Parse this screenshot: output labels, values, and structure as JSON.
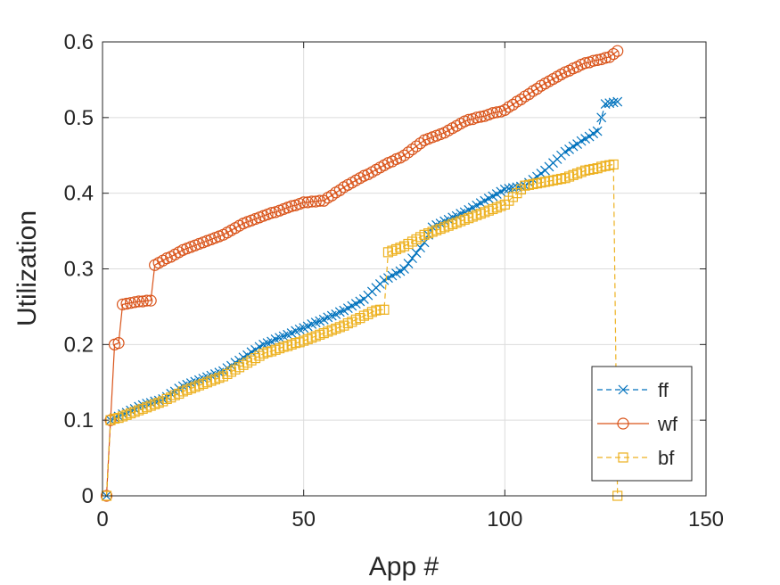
{
  "chart_data": {
    "type": "line",
    "title": "",
    "xlabel": "App #",
    "ylabel": "Utilization",
    "xlim": [
      0,
      150
    ],
    "ylim": [
      0,
      0.6
    ],
    "xticks": [
      0,
      50,
      100,
      150
    ],
    "yticks": [
      0,
      0.1,
      0.2,
      0.3,
      0.4,
      0.5,
      0.6
    ],
    "xtick_labels": [
      "0",
      "50",
      "100",
      "150"
    ],
    "ytick_labels": [
      "0",
      "0.1",
      "0.2",
      "0.3",
      "0.4",
      "0.5",
      "0.6"
    ],
    "grid": true,
    "legend_position": "bottom-right",
    "series": [
      {
        "name": "ff",
        "color": "#0072BD",
        "line_style": "dashed",
        "marker": "x",
        "anchors": [
          [
            1,
            0
          ],
          [
            2,
            0.1
          ],
          [
            5,
            0.108
          ],
          [
            10,
            0.12
          ],
          [
            15,
            0.128
          ],
          [
            20,
            0.145
          ],
          [
            30,
            0.165
          ],
          [
            40,
            0.2
          ],
          [
            50,
            0.222
          ],
          [
            60,
            0.245
          ],
          [
            65,
            0.26
          ],
          [
            70,
            0.285
          ],
          [
            75,
            0.3
          ],
          [
            80,
            0.335
          ],
          [
            82,
            0.355
          ],
          [
            90,
            0.375
          ],
          [
            100,
            0.405
          ],
          [
            105,
            0.41
          ],
          [
            110,
            0.43
          ],
          [
            115,
            0.455
          ],
          [
            123,
            0.482
          ],
          [
            125,
            0.518
          ],
          [
            128,
            0.521
          ]
        ]
      },
      {
        "name": "wf",
        "color": "#D95319",
        "line_style": "solid",
        "marker": "o",
        "anchors": [
          [
            1,
            0
          ],
          [
            2,
            0.1
          ],
          [
            3,
            0.2
          ],
          [
            4,
            0.202
          ],
          [
            5,
            0.253
          ],
          [
            8,
            0.256
          ],
          [
            12,
            0.258
          ],
          [
            13,
            0.305
          ],
          [
            20,
            0.325
          ],
          [
            30,
            0.345
          ],
          [
            35,
            0.36
          ],
          [
            40,
            0.37
          ],
          [
            50,
            0.388
          ],
          [
            55,
            0.39
          ],
          [
            60,
            0.408
          ],
          [
            70,
            0.437
          ],
          [
            75,
            0.45
          ],
          [
            80,
            0.47
          ],
          [
            85,
            0.48
          ],
          [
            90,
            0.495
          ],
          [
            100,
            0.51
          ],
          [
            110,
            0.545
          ],
          [
            115,
            0.56
          ],
          [
            120,
            0.572
          ],
          [
            126,
            0.58
          ],
          [
            128,
            0.588
          ]
        ]
      },
      {
        "name": "bf",
        "color": "#EDB120",
        "line_style": "dashed",
        "marker": "s",
        "anchors": [
          [
            1,
            0
          ],
          [
            2,
            0.1
          ],
          [
            5,
            0.105
          ],
          [
            10,
            0.115
          ],
          [
            15,
            0.125
          ],
          [
            20,
            0.138
          ],
          [
            30,
            0.158
          ],
          [
            40,
            0.188
          ],
          [
            50,
            0.205
          ],
          [
            60,
            0.225
          ],
          [
            68,
            0.245
          ],
          [
            70,
            0.246
          ],
          [
            71,
            0.322
          ],
          [
            75,
            0.33
          ],
          [
            80,
            0.345
          ],
          [
            85,
            0.355
          ],
          [
            90,
            0.365
          ],
          [
            100,
            0.385
          ],
          [
            105,
            0.41
          ],
          [
            115,
            0.42
          ],
          [
            120,
            0.43
          ],
          [
            127,
            0.438
          ],
          [
            128,
            0
          ]
        ]
      }
    ]
  }
}
